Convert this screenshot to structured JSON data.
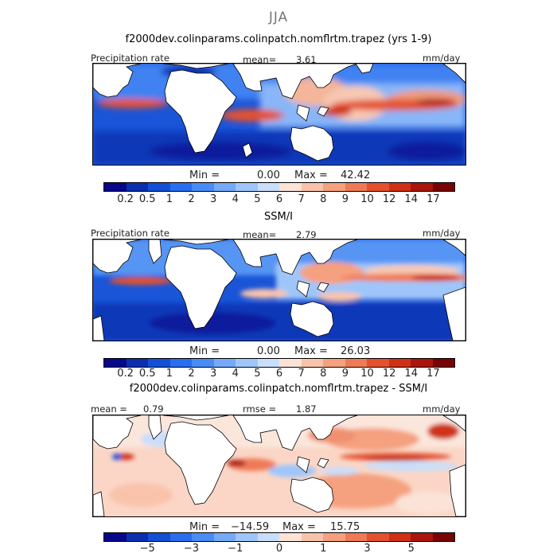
{
  "figure": {
    "season": "JJA",
    "colors": {
      "land": "#ffffff",
      "coast": "#000000"
    }
  },
  "panels": [
    {
      "title": "f2000dev.colinparams.colinpatch.nomflrtm.trapez (yrs 1-9)",
      "variable": "Precipitation rate",
      "stat_label": "mean=",
      "stat_value": "3.61",
      "units": "mm/day",
      "min_label": "Min =",
      "min_value": "0.00",
      "max_label": "Max =",
      "max_value": "42.42"
    },
    {
      "title": "SSM/I",
      "variable": "Precipitation rate",
      "stat_label": "mean=",
      "stat_value": "2.79",
      "units": "mm/day",
      "min_label": "Min =",
      "min_value": "0.00",
      "max_label": "Max =",
      "max_value": "26.03"
    },
    {
      "title": "f2000dev.colinparams.colinpatch.nomflrtm.trapez - SSM/I",
      "stat_label": "mean =",
      "stat_value": "0.79",
      "rmse_label": "rmse =",
      "rmse_value": "1.87",
      "units": "mm/day",
      "min_label": "Min =",
      "min_value": "−14.59",
      "max_label": "Max =",
      "max_value": "15.75"
    }
  ],
  "colorbars": {
    "precip": {
      "colors": [
        "#08088a",
        "#0b2fb0",
        "#1450d6",
        "#2a6ef0",
        "#4a8cf7",
        "#74aaf8",
        "#9fc6fa",
        "#c9defb",
        "#fbe3d8",
        "#f9c3ab",
        "#f5a07f",
        "#ef7a56",
        "#e4512f",
        "#cf3016",
        "#aa160b",
        "#780404"
      ],
      "ticks": [
        "0.2",
        "0.5",
        "1",
        "2",
        "3",
        "4",
        "5",
        "6",
        "7",
        "8",
        "9",
        "10",
        "12",
        "14",
        "17"
      ]
    },
    "diff": {
      "colors": [
        "#08088a",
        "#0b2fb0",
        "#1450d6",
        "#2a6ef0",
        "#4a8cf7",
        "#74aaf8",
        "#9fc6fa",
        "#c9defb",
        "#fbe3d8",
        "#f9c3ab",
        "#f5a07f",
        "#ef7a56",
        "#e4512f",
        "#cf3016",
        "#aa160b",
        "#780404"
      ],
      "ticks": [
        "−5",
        "−3",
        "−1",
        "0",
        "1",
        "3",
        "5"
      ],
      "tick_index": [
        2,
        4,
        6,
        8,
        10,
        12,
        14
      ]
    }
  }
}
